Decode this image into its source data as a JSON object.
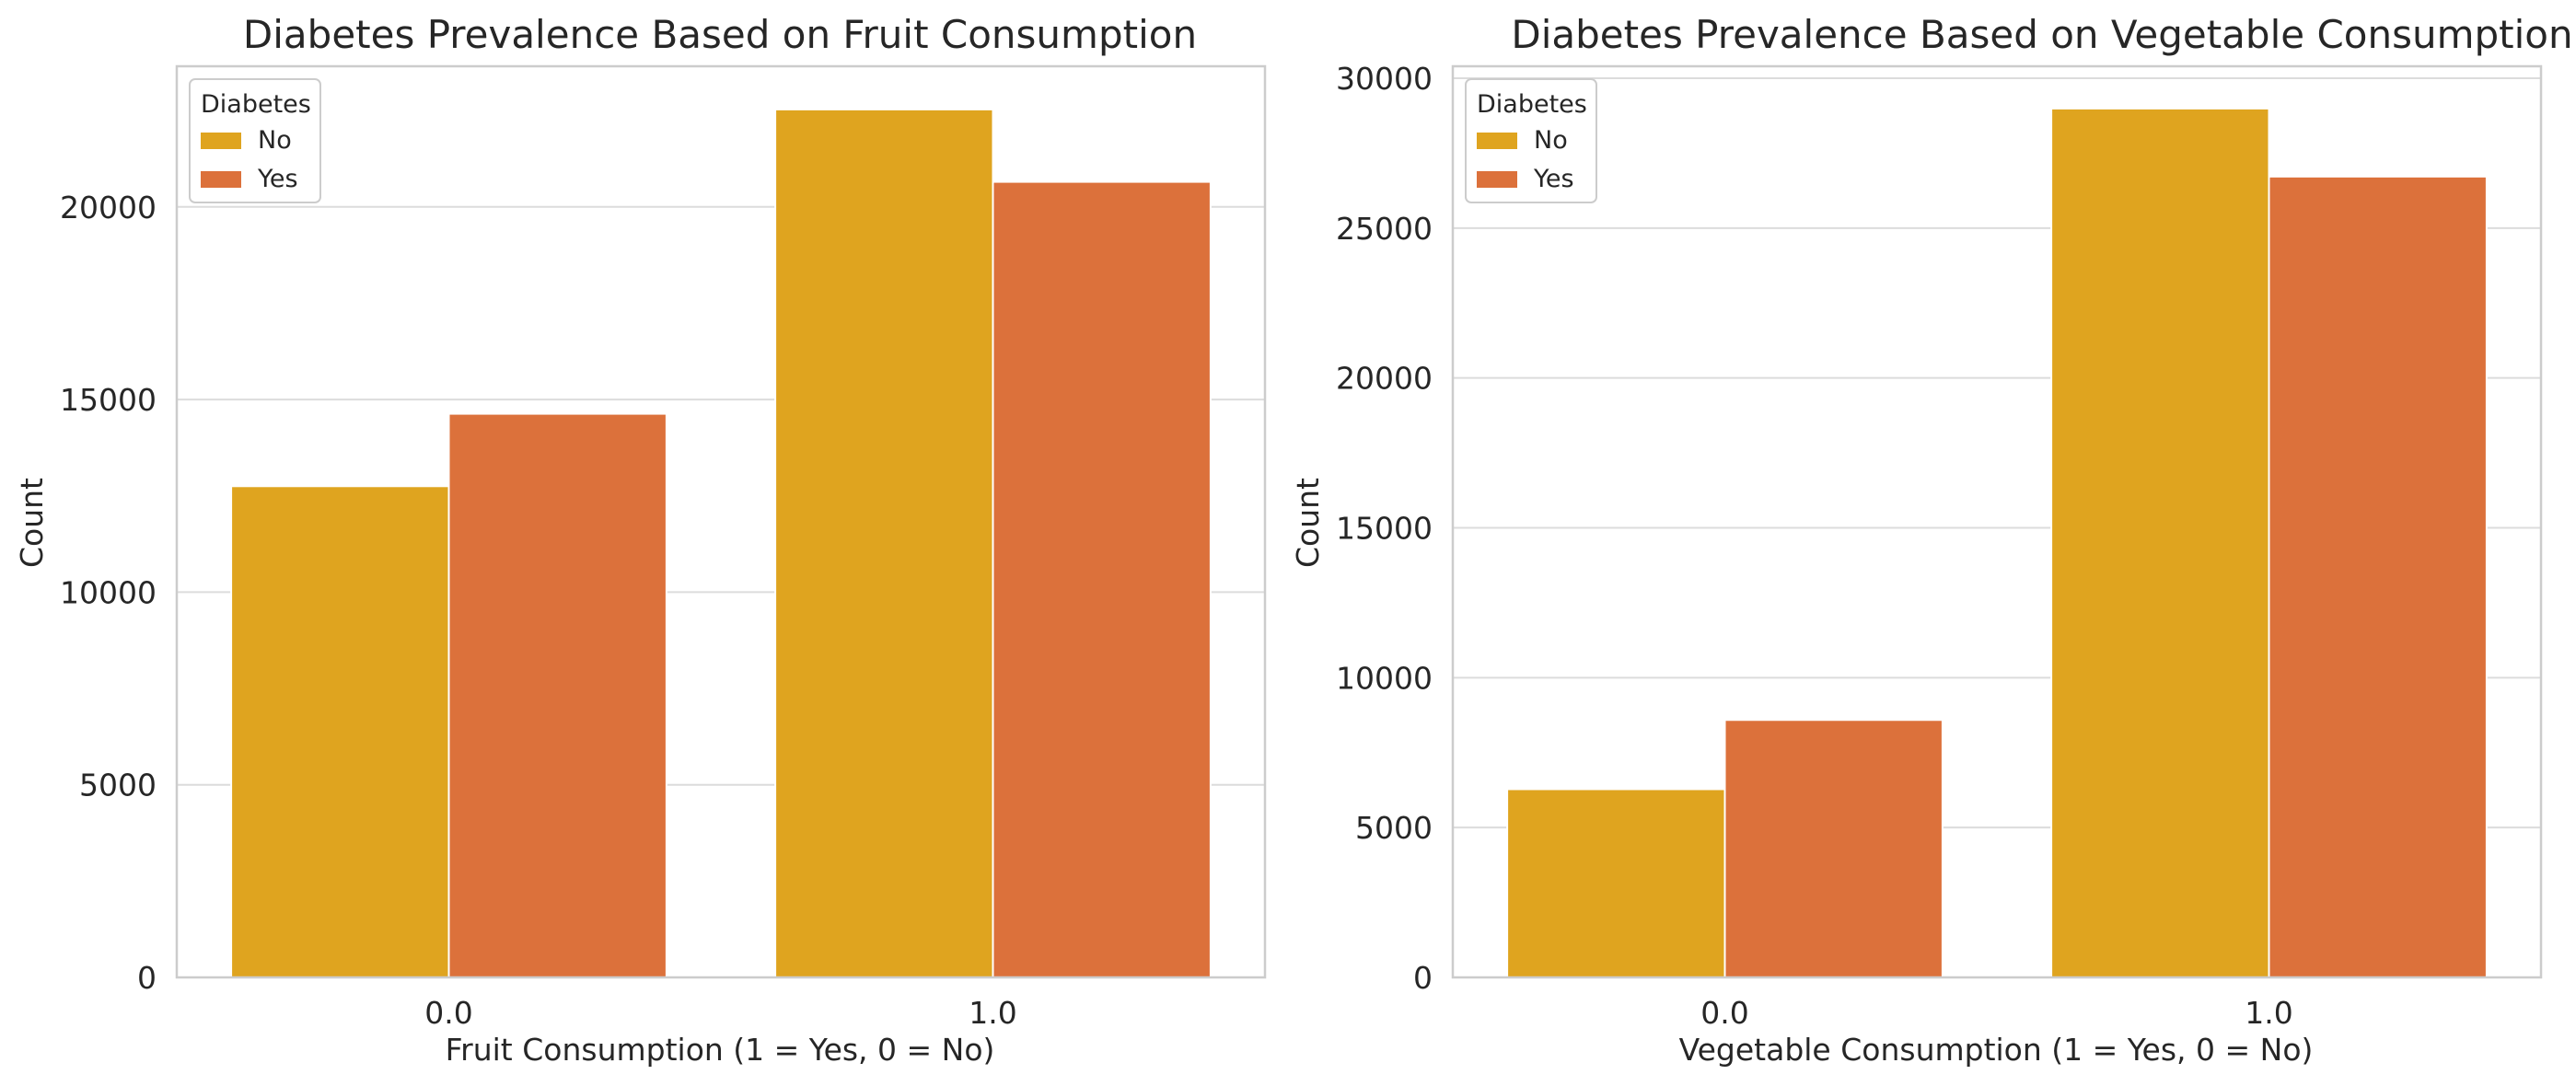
{
  "palette": {
    "No": "#dfa41f",
    "Yes": "#dc713b"
  },
  "chart_data": [
    {
      "type": "bar",
      "title": "Diabetes Prevalence Based on Fruit Consumption",
      "xlabel": "Fruit Consumption (1 = Yes, 0 = No)",
      "ylabel": "Count",
      "categories": [
        "0.0",
        "1.0"
      ],
      "series": [
        {
          "name": "No",
          "values": [
            12750,
            22530
          ]
        },
        {
          "name": "Yes",
          "values": [
            14630,
            20650
          ]
        }
      ],
      "ylim": [
        0,
        23650
      ],
      "yticks": [
        0,
        5000,
        10000,
        15000,
        20000
      ],
      "legend": {
        "title": "Diabetes",
        "position": "top-left"
      },
      "grid": "y"
    },
    {
      "type": "bar",
      "title": "Diabetes Prevalence Based on Vegetable Consumption",
      "xlabel": "Vegetable Consumption (1 = Yes, 0 = No)",
      "ylabel": "Count",
      "categories": [
        "0.0",
        "1.0"
      ],
      "series": [
        {
          "name": "No",
          "values": [
            6280,
            28990
          ]
        },
        {
          "name": "Yes",
          "values": [
            8590,
            26720
          ]
        }
      ],
      "ylim": [
        0,
        30400
      ],
      "yticks": [
        0,
        5000,
        10000,
        15000,
        20000,
        25000,
        30000
      ],
      "legend": {
        "title": "Diabetes",
        "position": "top-left"
      },
      "grid": "y"
    }
  ]
}
